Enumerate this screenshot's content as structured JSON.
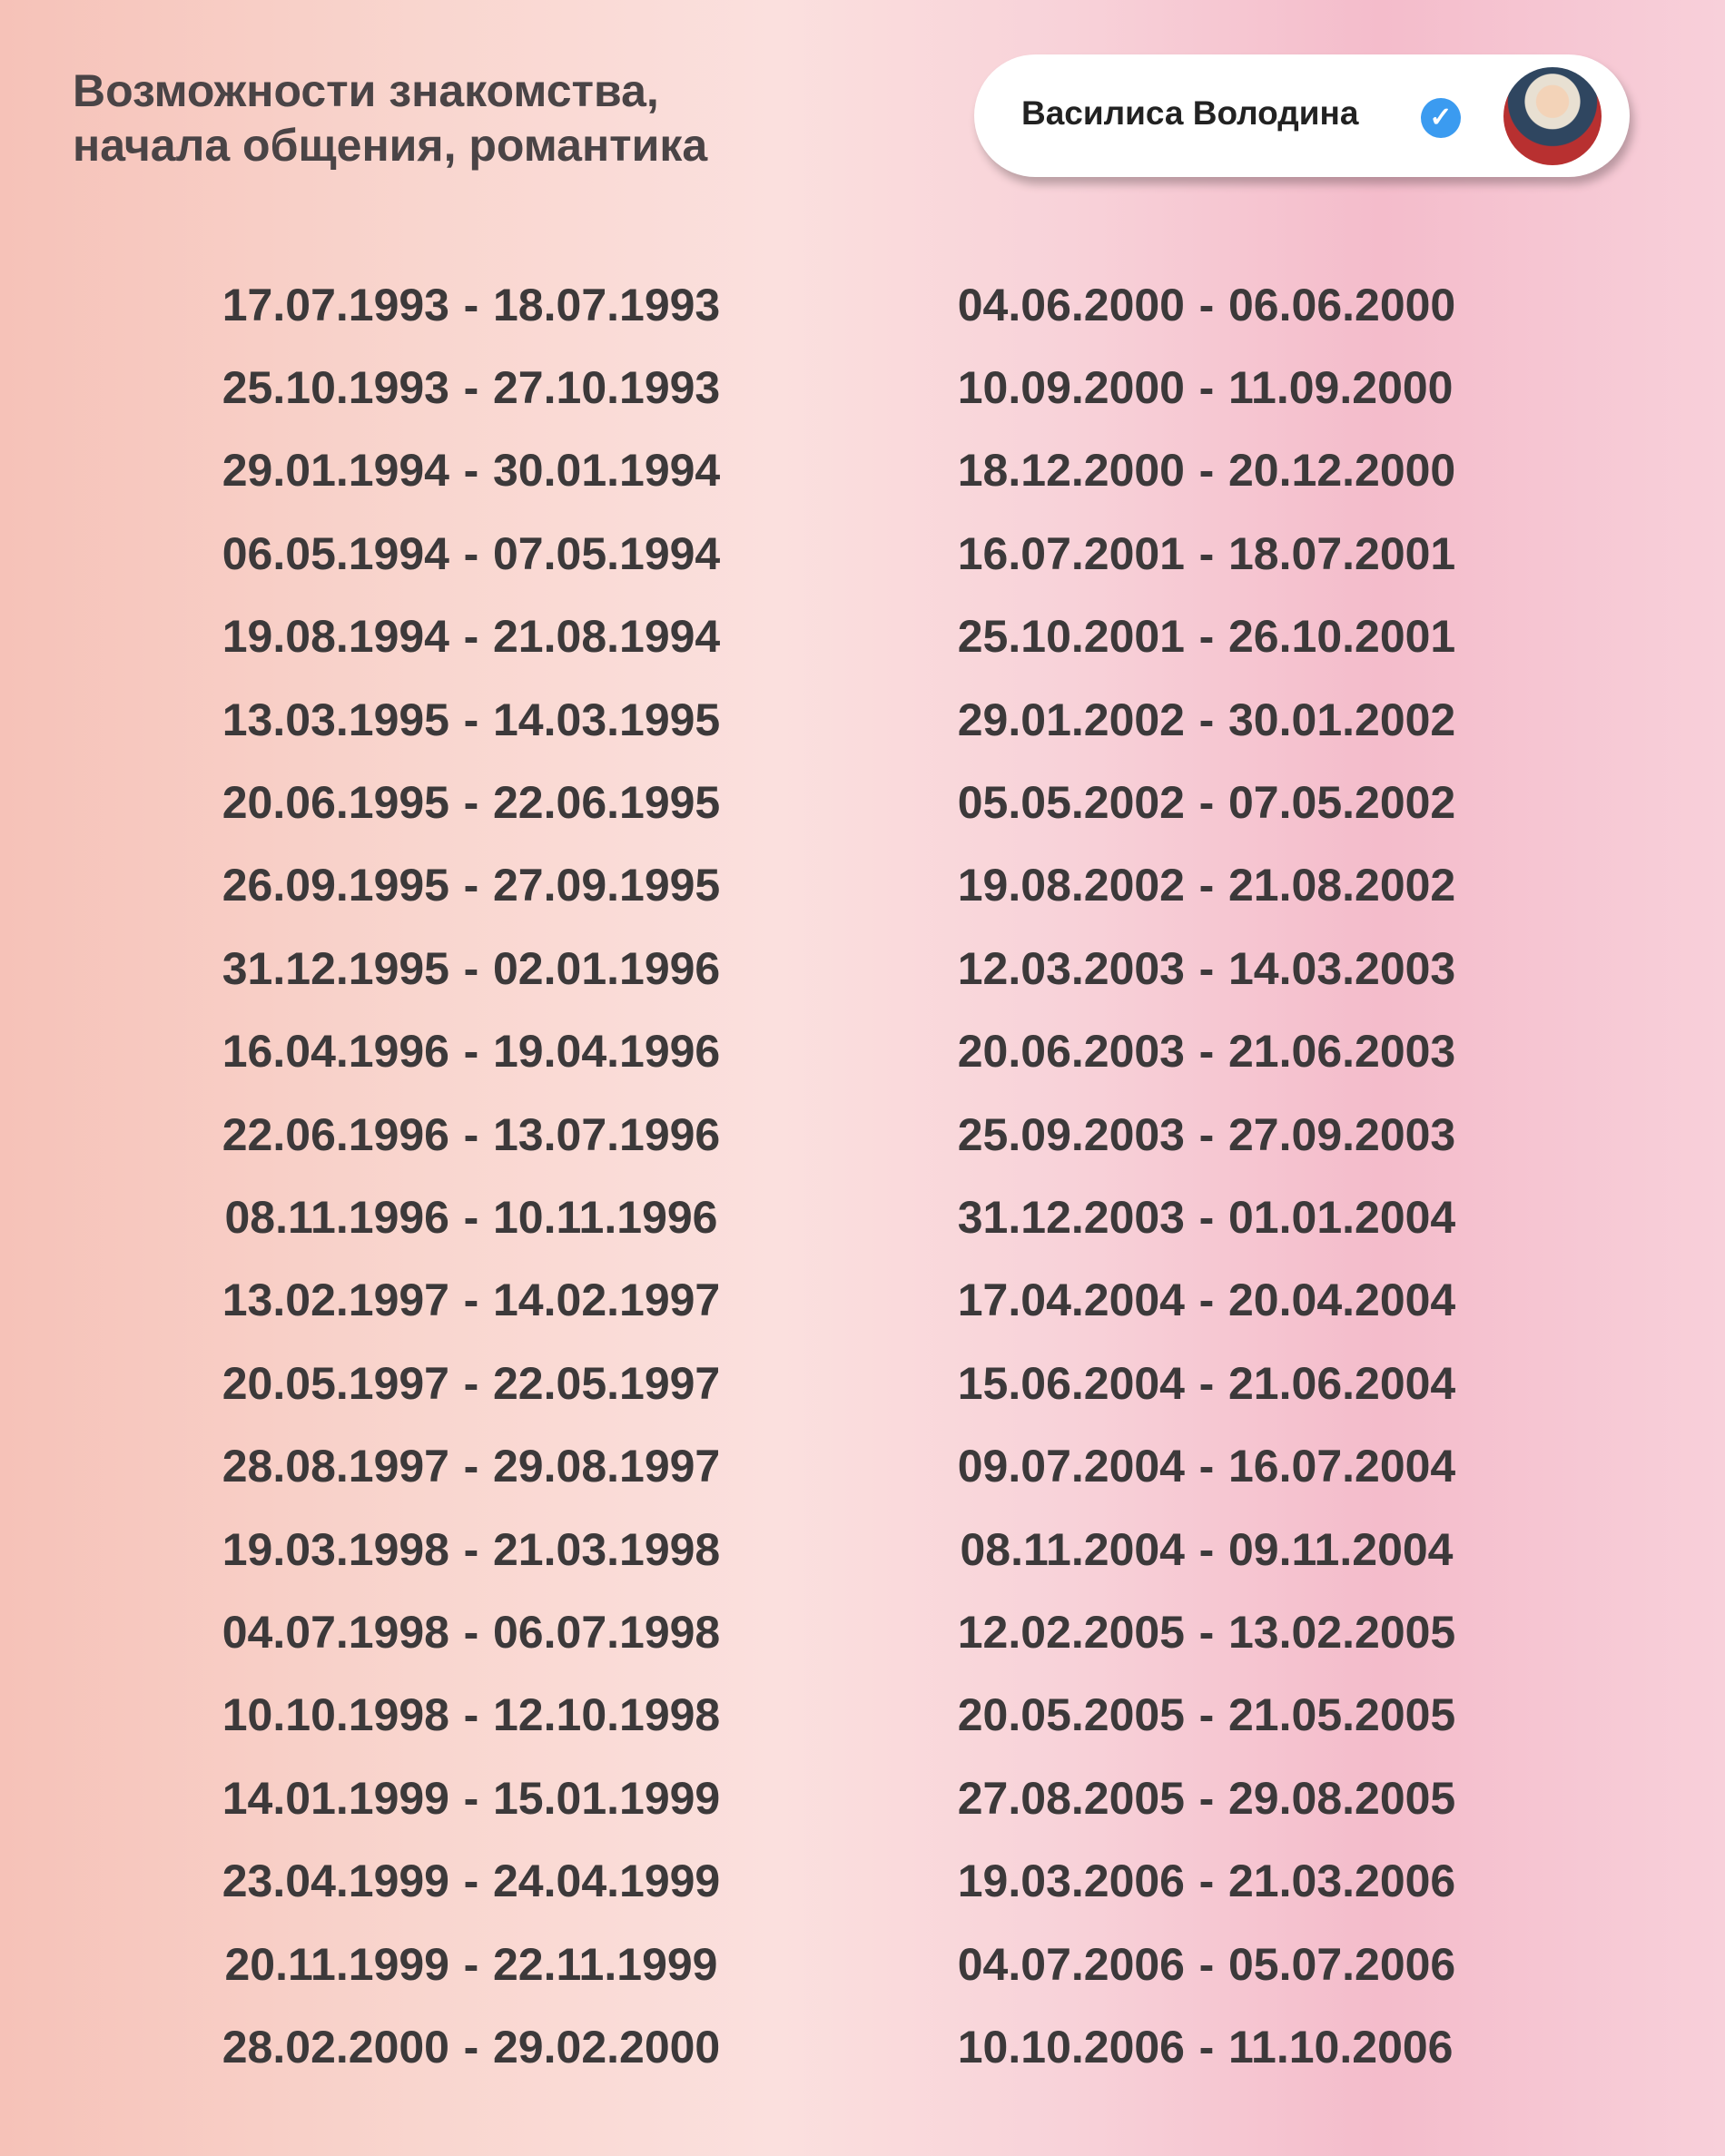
{
  "title": [
    "Возможности знакомства,",
    "начала общения, романтика"
  ],
  "author": {
    "name": "Василиса Володина",
    "verified_icon": "verified-badge-icon",
    "verified_color": "#3b9bf0"
  },
  "left_column": [
    [
      "17.07.1993",
      "18.07.1993"
    ],
    [
      "25.10.1993",
      "27.10.1993"
    ],
    [
      "29.01.1994",
      "30.01.1994"
    ],
    [
      "06.05.1994",
      "07.05.1994"
    ],
    [
      "19.08.1994",
      "21.08.1994"
    ],
    [
      "13.03.1995",
      "14.03.1995"
    ],
    [
      "20.06.1995",
      "22.06.1995"
    ],
    [
      "26.09.1995",
      "27.09.1995"
    ],
    [
      "31.12.1995",
      "02.01.1996"
    ],
    [
      "16.04.1996",
      "19.04.1996"
    ],
    [
      "22.06.1996",
      "13.07.1996"
    ],
    [
      "08.11.1996",
      "10.11.1996"
    ],
    [
      "13.02.1997",
      "14.02.1997"
    ],
    [
      "20.05.1997",
      "22.05.1997"
    ],
    [
      "28.08.1997",
      "29.08.1997"
    ],
    [
      "19.03.1998",
      "21.03.1998"
    ],
    [
      "04.07.1998",
      "06.07.1998"
    ],
    [
      "10.10.1998",
      "12.10.1998"
    ],
    [
      "14.01.1999",
      "15.01.1999"
    ],
    [
      "23.04.1999",
      "24.04.1999"
    ],
    [
      "20.11.1999",
      "22.11.1999"
    ],
    [
      "28.02.2000",
      "29.02.2000"
    ]
  ],
  "right_column": [
    [
      "04.06.2000",
      "06.06.2000"
    ],
    [
      "10.09.2000",
      "11.09.2000"
    ],
    [
      "18.12.2000",
      "20.12.2000"
    ],
    [
      "16.07.2001",
      "18.07.2001"
    ],
    [
      "25.10.2001",
      "26.10.2001"
    ],
    [
      "29.01.2002",
      "30.01.2002"
    ],
    [
      "05.05.2002",
      "07.05.2002"
    ],
    [
      "19.08.2002",
      "21.08.2002"
    ],
    [
      "12.03.2003",
      "14.03.2003"
    ],
    [
      "20.06.2003",
      "21.06.2003"
    ],
    [
      "25.09.2003",
      "27.09.2003"
    ],
    [
      "31.12.2003",
      "01.01.2004"
    ],
    [
      "17.04.2004",
      "20.04.2004"
    ],
    [
      "15.06.2004",
      "21.06.2004"
    ],
    [
      "09.07.2004",
      "16.07.2004"
    ],
    [
      "08.11.2004",
      "09.11.2004"
    ],
    [
      "12.02.2005",
      "13.02.2005"
    ],
    [
      "20.05.2005",
      "21.05.2005"
    ],
    [
      "27.08.2005",
      "29.08.2005"
    ],
    [
      "19.03.2006",
      "21.03.2006"
    ],
    [
      "04.07.2006",
      "05.07.2006"
    ],
    [
      "10.10.2006",
      "11.10.2006"
    ]
  ],
  "separator": "-"
}
